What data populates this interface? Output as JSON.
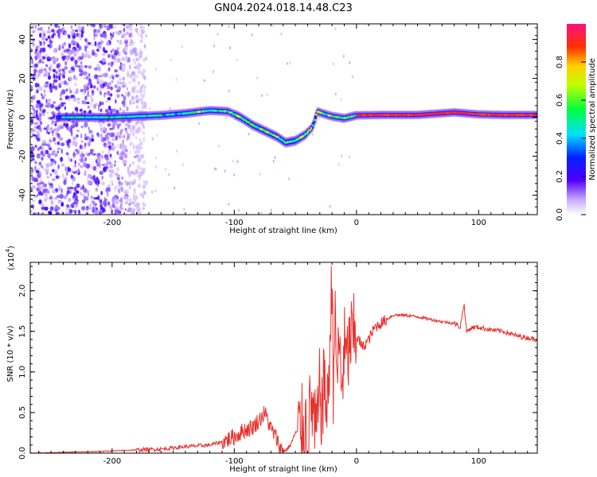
{
  "figure": {
    "title": "GN04.2024.018.14.48.C23"
  },
  "chart_data": [
    {
      "type": "heatmap",
      "xlabel": "Height of straight line (km)",
      "ylabel": "Frequency (Hz)",
      "xlim": [
        -267,
        148
      ],
      "ylim": [
        -50,
        48
      ],
      "xticks": [
        -200,
        -100,
        0,
        100
      ],
      "xtick_labels": [
        "-200",
        "-100",
        "0",
        "100"
      ],
      "yticks": [
        -40,
        -20,
        0,
        20,
        40
      ],
      "ytick_labels": [
        "-40",
        "-20",
        "0",
        "20",
        "40"
      ],
      "colorbar": {
        "label": "Normalized spectral amplitude",
        "range": [
          0,
          1
        ],
        "ticks": [
          0.0,
          0.2,
          0.4,
          0.6,
          0.8
        ],
        "tick_labels": [
          "0.0",
          "0.2",
          "0.4",
          "0.6",
          "0.8"
        ]
      },
      "ridge": {
        "x": [
          -245,
          -220,
          -200,
          -180,
          -160,
          -140,
          -120,
          -105,
          -95,
          -85,
          -75,
          -65,
          -58,
          -50,
          -42,
          -36,
          -32,
          -28,
          -20,
          -10,
          0,
          20,
          50,
          80,
          100,
          120,
          148
        ],
        "y": [
          0,
          0,
          0,
          0.5,
          1,
          2,
          3.5,
          3,
          0,
          -4,
          -7,
          -10,
          -13,
          -12,
          -9,
          -5,
          3,
          2,
          0.5,
          -0.5,
          1,
          1.2,
          1.2,
          2.5,
          1.5,
          1.2,
          1.2
        ]
      },
      "noise_region_x": [
        -267,
        -172
      ]
    },
    {
      "type": "line",
      "xlabel": "Height of straight line (km)",
      "ylabel": "SNR (10 * v/v)",
      "y_multiplier": "(x10",
      "y_multiplier_exp": "4",
      "y_multiplier_close": ")",
      "xlim": [
        -267,
        148
      ],
      "ylim": [
        0,
        2.35
      ],
      "xticks": [
        -200,
        -100,
        0,
        100
      ],
      "xtick_labels": [
        "-200",
        "-100",
        "0",
        "100"
      ],
      "yticks": [
        0.0,
        0.5,
        1.0,
        1.5,
        2.0
      ],
      "ytick_labels": [
        "0.0",
        "0.5",
        "1.0",
        "1.5",
        "2.0"
      ],
      "series": [
        {
          "color": "#e8302c",
          "x": [
            -267,
            -240,
            -210,
            -180,
            -160,
            -140,
            -120,
            -110,
            -100,
            -92,
            -85,
            -80,
            -75,
            -70,
            -66,
            -62,
            -58,
            -54,
            -50,
            -45,
            -42,
            -40,
            -38,
            -36,
            -34,
            -32,
            -30,
            -28,
            -26,
            -24,
            -22,
            -21,
            -20,
            -19,
            -18,
            -16,
            -14,
            -12,
            -10,
            -8,
            -5,
            0,
            5,
            10,
            15,
            20,
            25,
            30,
            40,
            50,
            60,
            70,
            80,
            85,
            88,
            90,
            95,
            100,
            110,
            120,
            130,
            140,
            148
          ],
          "values": [
            0.0,
            0.01,
            0.02,
            0.04,
            0.05,
            0.08,
            0.1,
            0.14,
            0.2,
            0.28,
            0.32,
            0.4,
            0.5,
            0.3,
            0.2,
            0.05,
            0.03,
            0.1,
            0.25,
            0.3,
            0.4,
            0.15,
            0.5,
            0.6,
            0.25,
            0.3,
            0.8,
            0.5,
            1.0,
            0.4,
            1.3,
            1.5,
            2.35,
            0.9,
            1.7,
            1.0,
            1.3,
            0.8,
            1.3,
            1.1,
            1.4,
            1.45,
            1.3,
            1.4,
            1.55,
            1.6,
            1.65,
            1.7,
            1.7,
            1.68,
            1.65,
            1.62,
            1.6,
            1.55,
            1.85,
            1.5,
            1.55,
            1.55,
            1.52,
            1.5,
            1.45,
            1.42,
            1.4
          ]
        }
      ]
    }
  ]
}
